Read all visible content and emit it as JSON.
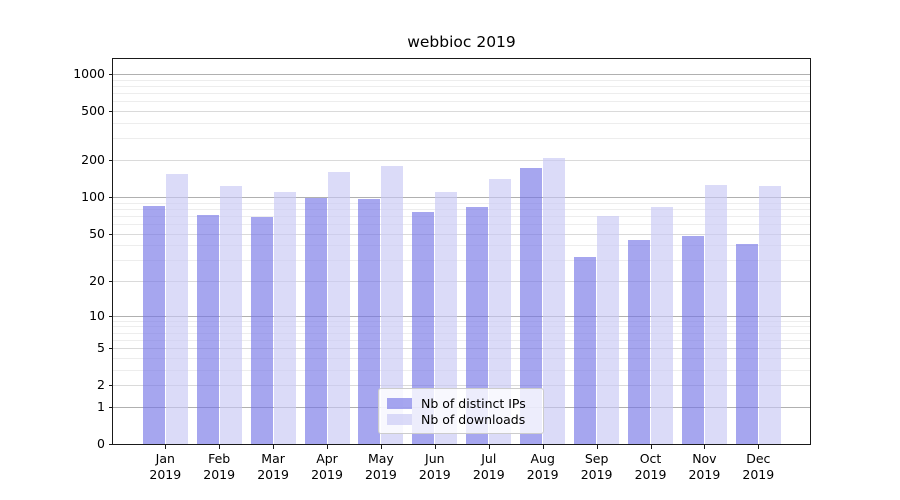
{
  "chart_data": {
    "type": "bar",
    "title": "webbioc 2019",
    "categories": [
      "Jan 2019",
      "Feb 2019",
      "Mar 2019",
      "Apr 2019",
      "May 2019",
      "Jun 2019",
      "Jul 2019",
      "Aug 2019",
      "Sep 2019",
      "Oct 2019",
      "Nov 2019",
      "Dec 2019"
    ],
    "months": [
      "Jan",
      "Feb",
      "Mar",
      "Apr",
      "May",
      "Jun",
      "Jul",
      "Aug",
      "Sep",
      "Oct",
      "Nov",
      "Dec"
    ],
    "year": "2019",
    "series": [
      {
        "name": "Nb of distinct IPs",
        "values": [
          84,
          71,
          68,
          98,
          96,
          75,
          83,
          172,
          32,
          44,
          48,
          41
        ],
        "color_solid": "#a6a6ef",
        "color_rgba": "rgba(115,115,230,0.64)"
      },
      {
        "name": "Nb of downloads",
        "values": [
          154,
          124,
          110,
          160,
          180,
          110,
          140,
          207,
          70,
          82,
          126,
          123
        ],
        "color_solid": "#dbdbf8",
        "color_rgba": "rgba(200,200,245,0.65)"
      }
    ],
    "y_axis": {
      "scale": "log10(value+1)",
      "ticks": [
        0,
        1,
        2,
        5,
        10,
        20,
        50,
        100,
        200,
        500,
        1000
      ],
      "major_gridlines": [
        1,
        10,
        100,
        1000
      ],
      "mid_gridlines": [
        2,
        5,
        20,
        50,
        200,
        500
      ],
      "minor_gridlines": [
        3,
        4,
        6,
        7,
        8,
        9,
        30,
        40,
        60,
        70,
        80,
        90,
        300,
        400,
        600,
        700,
        800,
        900
      ],
      "top_value": 1325
    },
    "legend": {
      "entries": [
        "Nb of distinct IPs",
        "Nb of downloads"
      ]
    },
    "grid": true,
    "legend_position": "lower-center"
  },
  "colors": {
    "axis": "#1a1a1a",
    "grid_major": "#b0b0b0",
    "grid_mid": "#dadada",
    "grid_minor": "#ededed",
    "legend_border": "#cccccc",
    "legend_background": "rgba(255,255,255,0.8)",
    "background": "#ffffff",
    "text": "#000000"
  }
}
